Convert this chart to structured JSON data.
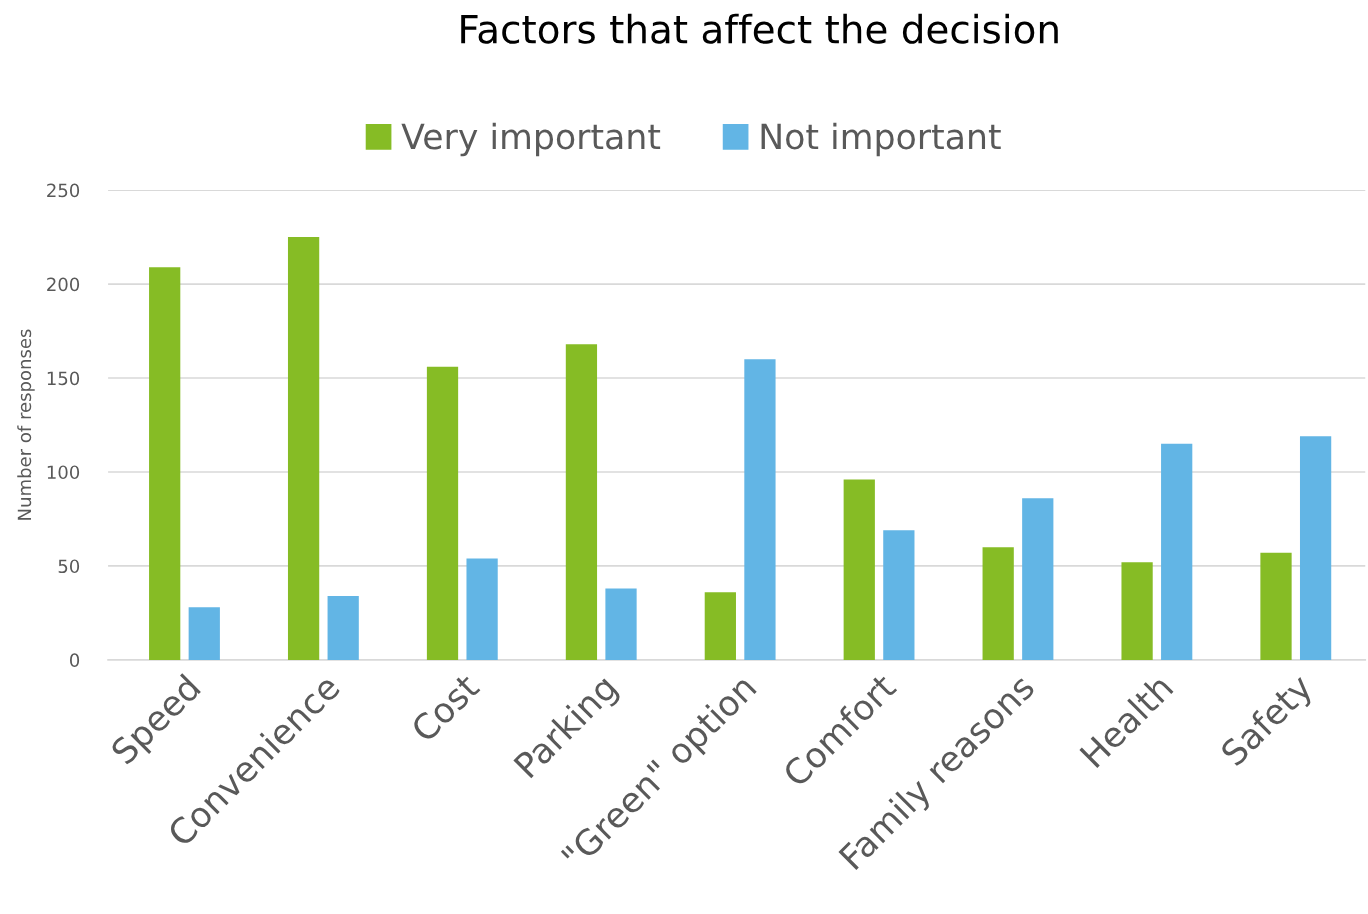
{
  "chart_data": {
    "type": "bar",
    "title": "Factors that affect the decision",
    "ylabel": "Number of responses",
    "categories": [
      "Speed",
      "Convenience",
      "Cost",
      "Parking",
      "\"Green\" option",
      "Comfort",
      "Family reasons",
      "Health",
      "Safety"
    ],
    "series": [
      {
        "name": "Very important",
        "color": "#86bc25",
        "values": [
          209,
          225,
          156,
          168,
          36,
          96,
          60,
          52,
          57
        ]
      },
      {
        "name": "Not important",
        "color": "#62b5e5",
        "values": [
          28,
          34,
          54,
          38,
          160,
          69,
          86,
          115,
          119
        ]
      }
    ],
    "ylim": [
      0,
      250
    ],
    "yticks": [
      0,
      50,
      100,
      150,
      200,
      250
    ],
    "grid": "y",
    "legend": "top"
  }
}
